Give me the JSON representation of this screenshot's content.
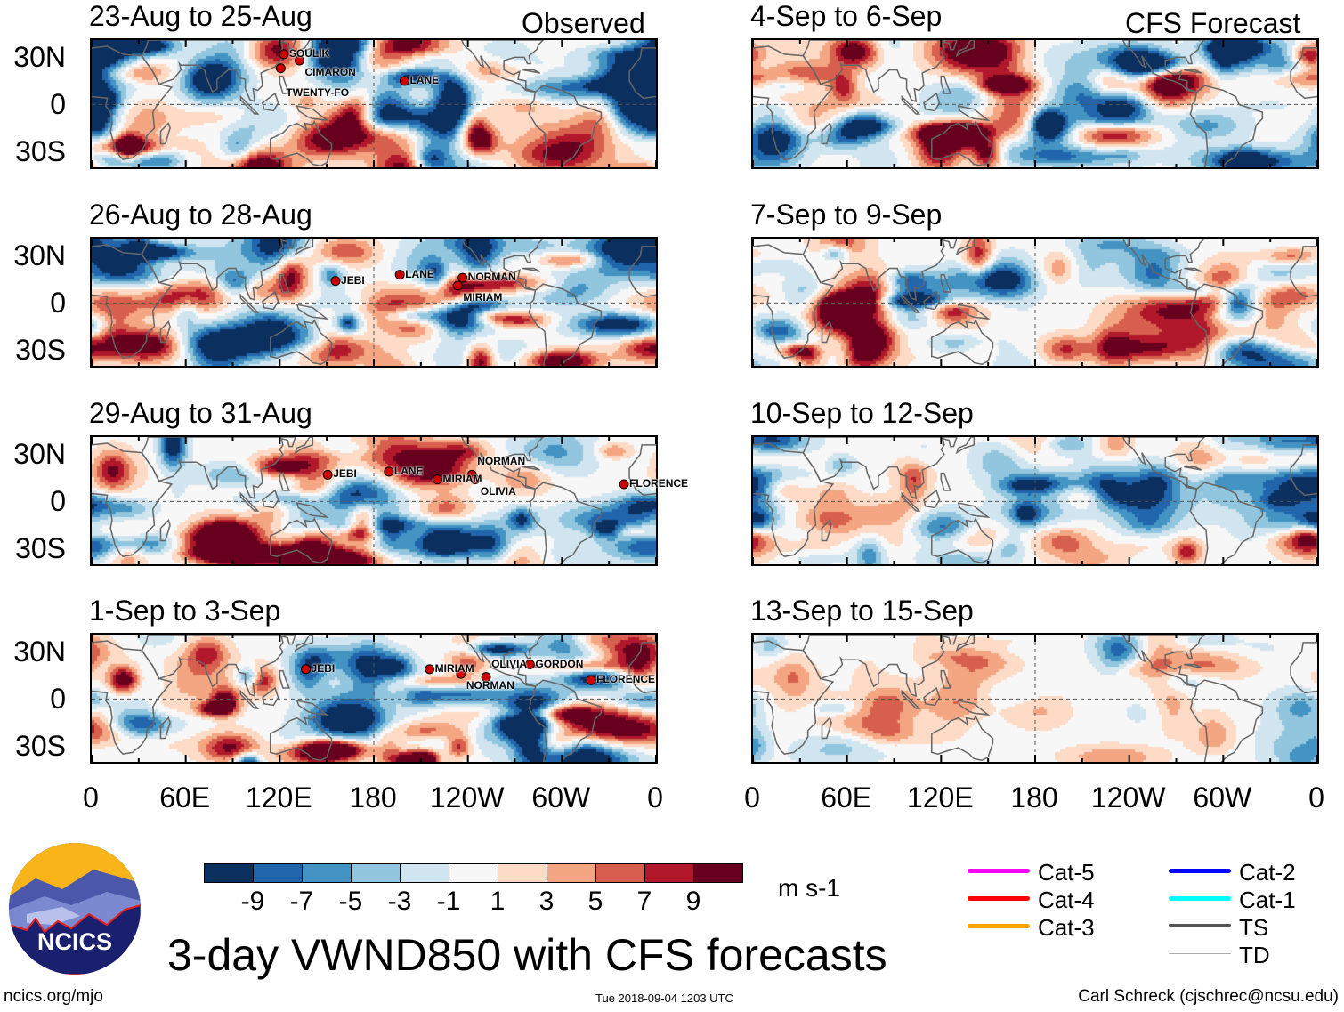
{
  "chart_data": {
    "type": "heatmap",
    "title": "3-day VWND850 with CFS forecasts",
    "units": "m s-1",
    "column_labels": {
      "observed": "Observed",
      "forecast": "CFS Forecast"
    },
    "lat_ticks": [
      "30N",
      "0",
      "30S"
    ],
    "lon_ticks": [
      "0",
      "60E",
      "120E",
      "180",
      "120W",
      "60W",
      "0"
    ],
    "lat_range": [
      -40,
      40
    ],
    "lon_range": [
      0,
      360
    ],
    "colorbar": {
      "labels": [
        "-9",
        "-7",
        "-5",
        "-3",
        "-1",
        "1",
        "3",
        "5",
        "7",
        "9"
      ],
      "colors": [
        "#0b2f5e",
        "#2166ac",
        "#4393c3",
        "#92c5de",
        "#d1e5f0",
        "#f7f7f7",
        "#fddbc7",
        "#f4a582",
        "#d6604d",
        "#b2182b",
        "#67001f"
      ]
    },
    "panels": [
      {
        "title": "23-Aug to 25-Aug",
        "column": "observed",
        "amp": 1.0,
        "storms": [
          {
            "name": "SOULIK",
            "lon": 126,
            "lat": 32
          },
          {
            "name": "CIMARON",
            "lon": 136,
            "lat": 28
          },
          {
            "name": "TWENTY-FO",
            "lon": 124,
            "lat": 23
          },
          {
            "name": "LANE",
            "lon": 203,
            "lat": 15
          }
        ]
      },
      {
        "title": "26-Aug to 28-Aug",
        "column": "observed",
        "amp": 1.0,
        "storms": [
          {
            "name": "JEBI",
            "lon": 159,
            "lat": 14
          },
          {
            "name": "LANE",
            "lon": 200,
            "lat": 18
          },
          {
            "name": "NORMAN",
            "lon": 240,
            "lat": 16
          },
          {
            "name": "MIRIAM",
            "lon": 237,
            "lat": 11
          }
        ]
      },
      {
        "title": "29-Aug to 31-Aug",
        "column": "observed",
        "amp": 1.0,
        "storms": [
          {
            "name": "JEBI",
            "lon": 154,
            "lat": 17
          },
          {
            "name": "LANE",
            "lon": 193,
            "lat": 19
          },
          {
            "name": "MIRIAM",
            "lon": 224,
            "lat": 14
          },
          {
            "name": "NORMAN",
            "lon": 246,
            "lat": 17
          },
          {
            "name": "OLIVIA",
            "lon": 248,
            "lat": 14
          },
          {
            "name": "FLORENCE",
            "lon": 343,
            "lat": 11
          }
        ]
      },
      {
        "title": "1-Sep to 3-Sep",
        "column": "observed",
        "amp": 1.0,
        "storms": [
          {
            "name": "JEBI",
            "lon": 140,
            "lat": 19
          },
          {
            "name": "MIRIAM",
            "lon": 219,
            "lat": 19
          },
          {
            "name": "NORMAN",
            "lon": 239,
            "lat": 16
          },
          {
            "name": "OLIVIA",
            "lon": 255,
            "lat": 14
          },
          {
            "name": "GORDON",
            "lon": 283,
            "lat": 22
          },
          {
            "name": "FLORENCE",
            "lon": 322,
            "lat": 12
          }
        ]
      },
      {
        "title": "4-Sep to 6-Sep",
        "column": "forecast",
        "amp": 1.0,
        "storms": []
      },
      {
        "title": "7-Sep to 9-Sep",
        "column": "forecast",
        "amp": 0.8,
        "storms": []
      },
      {
        "title": "10-Sep to 12-Sep",
        "column": "forecast",
        "amp": 0.65,
        "storms": []
      },
      {
        "title": "13-Sep to 15-Sep",
        "column": "forecast",
        "amp": 0.4,
        "storms": []
      }
    ]
  },
  "legend": [
    {
      "label": "Cat-5",
      "color": "#ff00ff"
    },
    {
      "label": "Cat-4",
      "color": "#ff0000"
    },
    {
      "label": "Cat-3",
      "color": "#ffa500"
    },
    {
      "label": "Cat-2",
      "color": "#0000ff"
    },
    {
      "label": "Cat-1",
      "color": "#00ffff"
    },
    {
      "label": "TS",
      "color": "#555555"
    },
    {
      "label": "TD",
      "color": "#aaaaaa"
    }
  ],
  "logo_text": "NCICS",
  "footer": {
    "left": "ncics.org/mjo",
    "center": "Tue 2018-09-04 1203 UTC",
    "right": "Carl Schreck (cjschrec@ncsu.edu)"
  }
}
